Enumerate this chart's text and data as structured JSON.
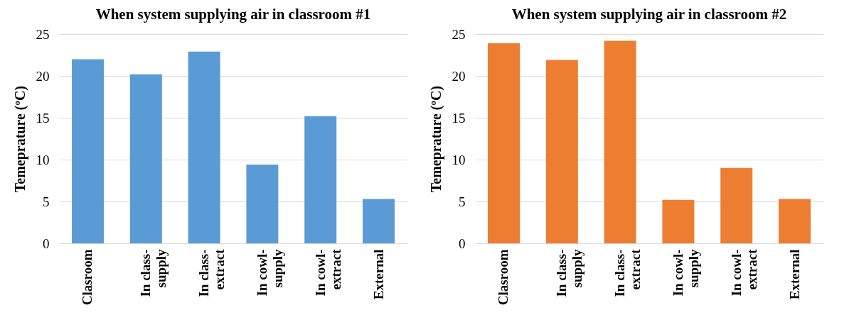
{
  "chart_data": [
    {
      "type": "bar",
      "title": "When system supplying air in classroom #1",
      "ylabel": "Temeprature (ºC)",
      "categories": [
        "Clasroom",
        "In class-supply",
        "In class-extract",
        "In cowl-supply",
        "In cowl-extract",
        "External"
      ],
      "series": [
        {
          "color": "#5b9bd5",
          "values": [
            22,
            20.2,
            22.9,
            9.4,
            15.2,
            5.3
          ]
        }
      ],
      "ylim": [
        0,
        25
      ],
      "yticks": [
        0,
        5,
        10,
        15,
        20,
        25
      ],
      "grid": "y"
    },
    {
      "type": "bar",
      "title": "When system supplying air in classroom #2",
      "ylabel": "Temeprature (ºC)",
      "categories": [
        "Clasroom",
        "In class-supply",
        "In class-extract",
        "In cowl-supply",
        "In cowl-extract",
        "External"
      ],
      "series": [
        {
          "color": "#ed7d31",
          "values": [
            23.9,
            21.9,
            24.2,
            5.2,
            9.0,
            5.3
          ]
        }
      ],
      "ylim": [
        0,
        25
      ],
      "yticks": [
        0,
        5,
        10,
        15,
        20,
        25
      ],
      "grid": "y"
    }
  ]
}
